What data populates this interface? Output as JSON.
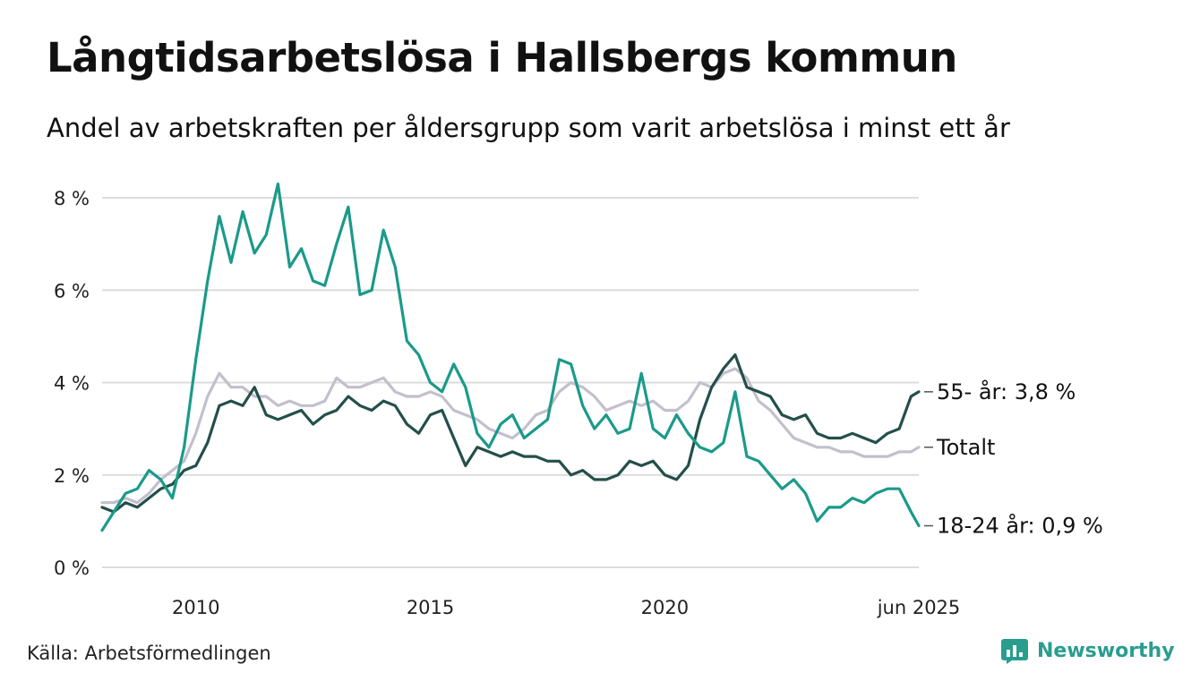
{
  "header": {
    "title": "Långtidsarbetslösa i Hallsbergs kommun",
    "subtitle": "Andel av arbetskraften per åldersgrupp som varit arbetslösa i minst ett år"
  },
  "footer": {
    "source": "Källa: Arbetsförmedlingen",
    "brand": "Newsworthy",
    "brand_color": "#2a9d8f"
  },
  "chart_data": {
    "type": "line",
    "title": "Långtidsarbetslösa i Hallsbergs kommun",
    "subtitle": "Andel av arbetskraften per åldersgrupp som varit arbetslösa i minst ett år",
    "xlabel": "",
    "ylabel": "",
    "x_range": [
      "2008-01",
      "2025-06"
    ],
    "ylim": [
      0,
      8
    ],
    "y_ticks": [
      0,
      2,
      4,
      6,
      8
    ],
    "y_tick_labels": [
      "0 %",
      "2 %",
      "4 %",
      "6 %",
      "8 %"
    ],
    "x_ticks": [
      {
        "date": "2010-01",
        "label": "2010"
      },
      {
        "date": "2015-01",
        "label": "2015"
      },
      {
        "date": "2020-01",
        "label": "2020"
      },
      {
        "date": "2025-06",
        "label": "jun 2025"
      }
    ],
    "grid": true,
    "legend": "end-labels",
    "series": [
      {
        "name": "Totalt",
        "end_label": "Totalt",
        "color": "#c4bfcc",
        "x": [
          "2008-01",
          "2008-04",
          "2008-07",
          "2008-10",
          "2009-01",
          "2009-04",
          "2009-07",
          "2009-10",
          "2010-01",
          "2010-04",
          "2010-07",
          "2010-10",
          "2011-01",
          "2011-04",
          "2011-07",
          "2011-10",
          "2012-01",
          "2012-04",
          "2012-07",
          "2012-10",
          "2013-01",
          "2013-04",
          "2013-07",
          "2013-10",
          "2014-01",
          "2014-04",
          "2014-07",
          "2014-10",
          "2015-01",
          "2015-04",
          "2015-07",
          "2015-10",
          "2016-01",
          "2016-04",
          "2016-07",
          "2016-10",
          "2017-01",
          "2017-04",
          "2017-07",
          "2017-10",
          "2018-01",
          "2018-04",
          "2018-07",
          "2018-10",
          "2019-01",
          "2019-04",
          "2019-07",
          "2019-10",
          "2020-01",
          "2020-04",
          "2020-07",
          "2020-10",
          "2021-01",
          "2021-04",
          "2021-07",
          "2021-10",
          "2022-01",
          "2022-04",
          "2022-07",
          "2022-10",
          "2023-01",
          "2023-04",
          "2023-07",
          "2023-10",
          "2024-01",
          "2024-04",
          "2024-07",
          "2024-10",
          "2025-01",
          "2025-04",
          "2025-06"
        ],
        "values": [
          1.4,
          1.4,
          1.5,
          1.4,
          1.6,
          1.9,
          2.1,
          2.3,
          2.9,
          3.7,
          4.2,
          3.9,
          3.9,
          3.7,
          3.7,
          3.5,
          3.6,
          3.5,
          3.5,
          3.6,
          4.1,
          3.9,
          3.9,
          4.0,
          4.1,
          3.8,
          3.7,
          3.7,
          3.8,
          3.7,
          3.4,
          3.3,
          3.2,
          3.0,
          2.9,
          2.8,
          3.0,
          3.3,
          3.4,
          3.8,
          4.0,
          3.9,
          3.7,
          3.4,
          3.5,
          3.6,
          3.5,
          3.6,
          3.4,
          3.4,
          3.6,
          4.0,
          3.9,
          4.2,
          4.3,
          4.1,
          3.6,
          3.4,
          3.1,
          2.8,
          2.7,
          2.6,
          2.6,
          2.5,
          2.5,
          2.4,
          2.4,
          2.4,
          2.5,
          2.5,
          2.6
        ]
      },
      {
        "name": "55- år",
        "end_label": "55- år: 3,8 %",
        "color": "#234f4a",
        "x": [
          "2008-01",
          "2008-04",
          "2008-07",
          "2008-10",
          "2009-01",
          "2009-04",
          "2009-07",
          "2009-10",
          "2010-01",
          "2010-04",
          "2010-07",
          "2010-10",
          "2011-01",
          "2011-04",
          "2011-07",
          "2011-10",
          "2012-01",
          "2012-04",
          "2012-07",
          "2012-10",
          "2013-01",
          "2013-04",
          "2013-07",
          "2013-10",
          "2014-01",
          "2014-04",
          "2014-07",
          "2014-10",
          "2015-01",
          "2015-04",
          "2015-07",
          "2015-10",
          "2016-01",
          "2016-04",
          "2016-07",
          "2016-10",
          "2017-01",
          "2017-04",
          "2017-07",
          "2017-10",
          "2018-01",
          "2018-04",
          "2018-07",
          "2018-10",
          "2019-01",
          "2019-04",
          "2019-07",
          "2019-10",
          "2020-01",
          "2020-04",
          "2020-07",
          "2020-10",
          "2021-01",
          "2021-04",
          "2021-07",
          "2021-10",
          "2022-01",
          "2022-04",
          "2022-07",
          "2022-10",
          "2023-01",
          "2023-04",
          "2023-07",
          "2023-10",
          "2024-01",
          "2024-04",
          "2024-07",
          "2024-10",
          "2025-01",
          "2025-04",
          "2025-06"
        ],
        "values": [
          1.3,
          1.2,
          1.4,
          1.3,
          1.5,
          1.7,
          1.8,
          2.1,
          2.2,
          2.7,
          3.5,
          3.6,
          3.5,
          3.9,
          3.3,
          3.2,
          3.3,
          3.4,
          3.1,
          3.3,
          3.4,
          3.7,
          3.5,
          3.4,
          3.6,
          3.5,
          3.1,
          2.9,
          3.3,
          3.4,
          2.8,
          2.2,
          2.6,
          2.5,
          2.4,
          2.5,
          2.4,
          2.4,
          2.3,
          2.3,
          2.0,
          2.1,
          1.9,
          1.9,
          2.0,
          2.3,
          2.2,
          2.3,
          2.0,
          1.9,
          2.2,
          3.2,
          3.9,
          4.3,
          4.6,
          3.9,
          3.8,
          3.7,
          3.3,
          3.2,
          3.3,
          2.9,
          2.8,
          2.8,
          2.9,
          2.8,
          2.7,
          2.9,
          3.0,
          3.7,
          3.8
        ]
      },
      {
        "name": "18-24 år",
        "end_label": "18-24 år: 0,9 %",
        "color": "#1a9a8a",
        "x": [
          "2008-01",
          "2008-04",
          "2008-07",
          "2008-10",
          "2009-01",
          "2009-04",
          "2009-07",
          "2009-10",
          "2010-01",
          "2010-04",
          "2010-07",
          "2010-10",
          "2011-01",
          "2011-04",
          "2011-07",
          "2011-10",
          "2012-01",
          "2012-04",
          "2012-07",
          "2012-10",
          "2013-01",
          "2013-04",
          "2013-07",
          "2013-10",
          "2014-01",
          "2014-04",
          "2014-07",
          "2014-10",
          "2015-01",
          "2015-04",
          "2015-07",
          "2015-10",
          "2016-01",
          "2016-04",
          "2016-07",
          "2016-10",
          "2017-01",
          "2017-04",
          "2017-07",
          "2017-10",
          "2018-01",
          "2018-04",
          "2018-07",
          "2018-10",
          "2019-01",
          "2019-04",
          "2019-07",
          "2019-10",
          "2020-01",
          "2020-04",
          "2020-07",
          "2020-10",
          "2021-01",
          "2021-04",
          "2021-07",
          "2021-10",
          "2022-01",
          "2022-04",
          "2022-07",
          "2022-10",
          "2023-01",
          "2023-04",
          "2023-07",
          "2023-10",
          "2024-01",
          "2024-04",
          "2024-07",
          "2024-10",
          "2025-01",
          "2025-04",
          "2025-06"
        ],
        "values": [
          0.8,
          1.2,
          1.6,
          1.7,
          2.1,
          1.9,
          1.5,
          2.6,
          4.5,
          6.2,
          7.6,
          6.6,
          7.7,
          6.8,
          7.2,
          8.3,
          6.5,
          6.9,
          6.2,
          6.1,
          7.0,
          7.8,
          5.9,
          6.0,
          7.3,
          6.5,
          4.9,
          4.6,
          4.0,
          3.8,
          4.4,
          3.9,
          2.9,
          2.6,
          3.1,
          3.3,
          2.8,
          3.0,
          3.2,
          4.5,
          4.4,
          3.5,
          3.0,
          3.3,
          2.9,
          3.0,
          4.2,
          3.0,
          2.8,
          3.3,
          2.9,
          2.6,
          2.5,
          2.7,
          3.8,
          2.4,
          2.3,
          2.0,
          1.7,
          1.9,
          1.6,
          1.0,
          1.3,
          1.3,
          1.5,
          1.4,
          1.6,
          1.7,
          1.7,
          1.2,
          0.9
        ]
      }
    ]
  }
}
